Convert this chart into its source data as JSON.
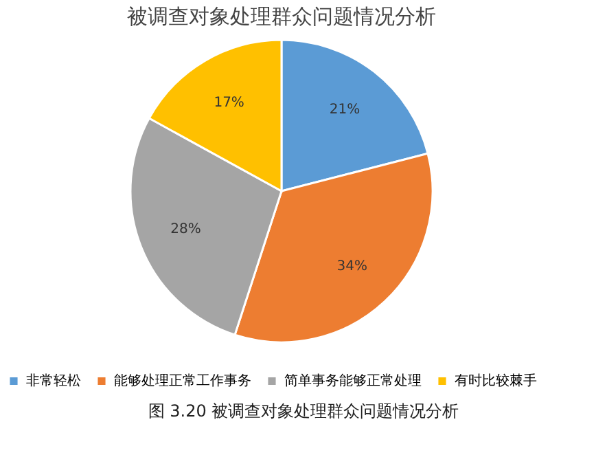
{
  "chart_data": {
    "type": "pie",
    "title": "被调查对象处理群众问题情况分析",
    "categories": [
      "非常轻松",
      "能够处理正常工作事务",
      "简单事务能够正常处理",
      "有时比较棘手"
    ],
    "values": [
      21,
      34,
      28,
      17
    ],
    "colors": [
      "#5b9bd5",
      "#ed7d31",
      "#a5a5a5",
      "#ffc000"
    ],
    "value_labels": [
      "21%",
      "34%",
      "28%",
      "17%"
    ],
    "legend": "bottom",
    "annotations": [
      "图 3.20 被调查对象处理群众问题情况分析"
    ]
  }
}
